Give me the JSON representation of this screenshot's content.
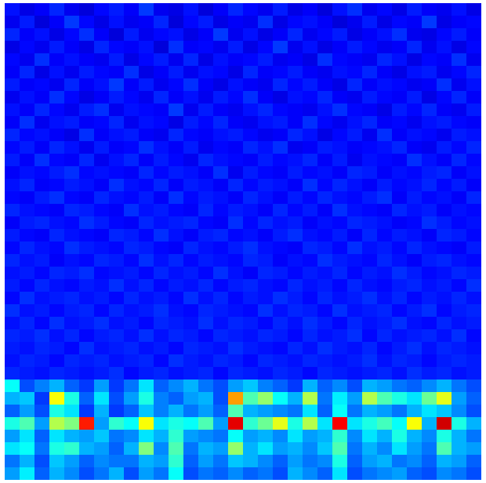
{
  "chart_data": {
    "type": "heatmap",
    "tick_labels": false,
    "clim": [
      0,
      100
    ],
    "z": [
      [
        14,
        10,
        12,
        16,
        11,
        9,
        13,
        15,
        12,
        18,
        11,
        10,
        14,
        9,
        12,
        16,
        13,
        11,
        15,
        10,
        12,
        9,
        14,
        17,
        11,
        13,
        10,
        15,
        12,
        11,
        14,
        10
      ],
      [
        11,
        15,
        9,
        12,
        18,
        13,
        10,
        14,
        11,
        12,
        16,
        9,
        13,
        15,
        10,
        12,
        11,
        17,
        10,
        13,
        14,
        12,
        9,
        11,
        15,
        10,
        13,
        12,
        18,
        10,
        12,
        13
      ],
      [
        16,
        12,
        14,
        10,
        13,
        17,
        12,
        9,
        15,
        11,
        13,
        14,
        10,
        12,
        18,
        11,
        14,
        10,
        12,
        16,
        11,
        13,
        15,
        10,
        12,
        14,
        17,
        11,
        10,
        13,
        15,
        12
      ],
      [
        10,
        13,
        11,
        15,
        12,
        10,
        16,
        13,
        12,
        14,
        9,
        17,
        12,
        13,
        11,
        15,
        10,
        13,
        18,
        11,
        14,
        10,
        12,
        15,
        13,
        11,
        12,
        16,
        11,
        14,
        10,
        13
      ],
      [
        13,
        11,
        17,
        12,
        14,
        12,
        11,
        15,
        10,
        13,
        15,
        11,
        16,
        10,
        14,
        12,
        13,
        15,
        11,
        12,
        10,
        17,
        13,
        12,
        11,
        16,
        14,
        10,
        13,
        12,
        17,
        11
      ],
      [
        12,
        16,
        10,
        14,
        11,
        15,
        13,
        12,
        17,
        10,
        12,
        15,
        11,
        14,
        13,
        10,
        16,
        12,
        13,
        15,
        12,
        11,
        14,
        13,
        16,
        12,
        10,
        14,
        15,
        11,
        13,
        16
      ],
      [
        15,
        12,
        13,
        11,
        16,
        12,
        14,
        18,
        12,
        15,
        11,
        13,
        17,
        12,
        10,
        14,
        12,
        11,
        16,
        13,
        15,
        12,
        10,
        16,
        12,
        14,
        13,
        11,
        12,
        17,
        11,
        14
      ],
      [
        11,
        14,
        12,
        17,
        13,
        10,
        12,
        15,
        13,
        11,
        16,
        12,
        14,
        11,
        15,
        13,
        17,
        12,
        10,
        14,
        13,
        16,
        12,
        11,
        15,
        13,
        12,
        15,
        10,
        13,
        16,
        12
      ],
      [
        14,
        12,
        16,
        13,
        11,
        15,
        17,
        11,
        14,
        13,
        12,
        18,
        11,
        15,
        12,
        11,
        14,
        16,
        13,
        12,
        11,
        14,
        17,
        13,
        12,
        10,
        15,
        13,
        16,
        12,
        11,
        15
      ],
      [
        12,
        17,
        11,
        14,
        15,
        12,
        13,
        16,
        11,
        14,
        13,
        10,
        15,
        13,
        16,
        12,
        11,
        14,
        15,
        12,
        17,
        13,
        11,
        14,
        16,
        12,
        13,
        11,
        14,
        15,
        13,
        12
      ],
      [
        16,
        13,
        14,
        12,
        10,
        17,
        12,
        14,
        15,
        12,
        11,
        16,
        13,
        12,
        14,
        15,
        13,
        11,
        12,
        16,
        14,
        10,
        13,
        15,
        11,
        17,
        12,
        14,
        13,
        11,
        15,
        14
      ],
      [
        13,
        15,
        12,
        16,
        14,
        11,
        15,
        12,
        13,
        17,
        14,
        12,
        15,
        11,
        13,
        12,
        16,
        14,
        17,
        11,
        12,
        15,
        14,
        12,
        13,
        14,
        16,
        12,
        11,
        15,
        13,
        16
      ],
      [
        15,
        12,
        17,
        13,
        12,
        16,
        11,
        14,
        16,
        12,
        15,
        13,
        11,
        16,
        14,
        13,
        12,
        15,
        13,
        14,
        16,
        12,
        15,
        11,
        14,
        13,
        12,
        17,
        14,
        12,
        16,
        13
      ],
      [
        12,
        14,
        13,
        15,
        17,
        13,
        14,
        13,
        12,
        16,
        13,
        15,
        14,
        12,
        17,
        11,
        15,
        13,
        12,
        15,
        13,
        14,
        12,
        16,
        15,
        12,
        14,
        13,
        15,
        16,
        12,
        14
      ],
      [
        14,
        16,
        12,
        13,
        15,
        14,
        12,
        17,
        14,
        13,
        16,
        12,
        15,
        14,
        12,
        16,
        13,
        15,
        14,
        12,
        17,
        13,
        16,
        14,
        12,
        15,
        13,
        14,
        16,
        13,
        15,
        12
      ],
      [
        13,
        12,
        15,
        17,
        13,
        12,
        16,
        14,
        13,
        15,
        12,
        17,
        13,
        15,
        14,
        12,
        16,
        14,
        12,
        15,
        13,
        16,
        14,
        13,
        15,
        17,
        12,
        15,
        13,
        14,
        12,
        16
      ],
      [
        16,
        14,
        13,
        12,
        16,
        15,
        13,
        12,
        17,
        14,
        15,
        13,
        12,
        16,
        13,
        15,
        14,
        12,
        16,
        13,
        15,
        12,
        17,
        14,
        13,
        12,
        16,
        14,
        15,
        12,
        14,
        13
      ],
      [
        12,
        15,
        16,
        14,
        13,
        17,
        15,
        13,
        12,
        16,
        14,
        15,
        16,
        13,
        12,
        17,
        13,
        16,
        14,
        15,
        12,
        14,
        13,
        16,
        15,
        14,
        12,
        13,
        17,
        15,
        13,
        14
      ],
      [
        15,
        13,
        12,
        16,
        14,
        13,
        12,
        16,
        15,
        13,
        17,
        14,
        12,
        15,
        16,
        13,
        14,
        12,
        15,
        17,
        14,
        13,
        15,
        12,
        16,
        13,
        15,
        14,
        12,
        16,
        15,
        13
      ],
      [
        13,
        16,
        14,
        13,
        17,
        15,
        14,
        13,
        16,
        15,
        13,
        12,
        16,
        14,
        13,
        15,
        17,
        14,
        13,
        12,
        16,
        15,
        13,
        17,
        14,
        15,
        13,
        16,
        14,
        13,
        12,
        15
      ],
      [
        16,
        14,
        15,
        12,
        14,
        13,
        16,
        15,
        13,
        17,
        14,
        16,
        13,
        15,
        14,
        13,
        16,
        15,
        12,
        14,
        13,
        17,
        15,
        14,
        13,
        16,
        14,
        12,
        15,
        16,
        14,
        13
      ],
      [
        14,
        15,
        13,
        16,
        15,
        17,
        13,
        14,
        15,
        13,
        16,
        14,
        15,
        13,
        17,
        14,
        12,
        16,
        15,
        13,
        15,
        14,
        16,
        13,
        15,
        14,
        17,
        15,
        13,
        14,
        16,
        15
      ],
      [
        15,
        13,
        16,
        14,
        13,
        15,
        14,
        17,
        14,
        16,
        13,
        15,
        14,
        16,
        13,
        15,
        16,
        14,
        13,
        16,
        14,
        15,
        13,
        16,
        14,
        13,
        15,
        16,
        14,
        15,
        13,
        17
      ],
      [
        13,
        17,
        14,
        15,
        16,
        14,
        15,
        13,
        16,
        14,
        15,
        13,
        17,
        14,
        16,
        13,
        15,
        14,
        17,
        15,
        13,
        16,
        14,
        15,
        17,
        14,
        16,
        13,
        15,
        14,
        16,
        14
      ],
      [
        17,
        14,
        15,
        13,
        15,
        16,
        13,
        16,
        14,
        15,
        17,
        14,
        13,
        16,
        15,
        14,
        13,
        17,
        14,
        16,
        15,
        13,
        17,
        14,
        15,
        16,
        13,
        15,
        17,
        13,
        15,
        16
      ],
      [
        14,
        16,
        13,
        17,
        14,
        15,
        17,
        14,
        15,
        13,
        16,
        15,
        14,
        17,
        14,
        16,
        15,
        13,
        16,
        14,
        17,
        15,
        13,
        16,
        14,
        15,
        17,
        14,
        13,
        16,
        14,
        15
      ],
      [
        16,
        15,
        17,
        14,
        16,
        13,
        15,
        16,
        14,
        17,
        14,
        16,
        15,
        13,
        16,
        15,
        14,
        16,
        15,
        13,
        16,
        14,
        15,
        17,
        13,
        16,
        14,
        15,
        16,
        14,
        17,
        13
      ],
      [
        15,
        14,
        16,
        15,
        13,
        17,
        14,
        15,
        16,
        14,
        15,
        13,
        16,
        15,
        14,
        17,
        15,
        14,
        13,
        16,
        14,
        17,
        15,
        14,
        16,
        13,
        15,
        17,
        14,
        16,
        15,
        14
      ],
      [
        14,
        16,
        15,
        13,
        16,
        15,
        16,
        14,
        15,
        16,
        13,
        17,
        15,
        14,
        16,
        15,
        13,
        16,
        15,
        14,
        16,
        15,
        14,
        15,
        17,
        14,
        16,
        15,
        13,
        15,
        16,
        15
      ],
      [
        16,
        15,
        14,
        16,
        15,
        14,
        15,
        17,
        13,
        15,
        16,
        14,
        15,
        16,
        13,
        16,
        15,
        14,
        16,
        15,
        13,
        16,
        15,
        14,
        15,
        16,
        14,
        17,
        15,
        16,
        14,
        15
      ],
      [
        38,
        20,
        25,
        30,
        22,
        18,
        28,
        18,
        24,
        35,
        22,
        26,
        30,
        24,
        20,
        28,
        32,
        25,
        22,
        18,
        30,
        22,
        26,
        20,
        30,
        28,
        24,
        22,
        26,
        30,
        24,
        20
      ],
      [
        30,
        32,
        18,
        62,
        40,
        22,
        35,
        20,
        28,
        40,
        25,
        22,
        28,
        30,
        20,
        72,
        45,
        52,
        38,
        30,
        55,
        24,
        36,
        28,
        55,
        45,
        40,
        35,
        48,
        60,
        28,
        22
      ],
      [
        22,
        28,
        20,
        40,
        35,
        18,
        30,
        18,
        22,
        32,
        25,
        30,
        24,
        28,
        22,
        45,
        30,
        28,
        26,
        24,
        35,
        22,
        38,
        24,
        30,
        28,
        24,
        30,
        35,
        32,
        26,
        20
      ],
      [
        40,
        45,
        28,
        55,
        50,
        85,
        28,
        42,
        38,
        62,
        35,
        40,
        38,
        45,
        28,
        90,
        42,
        48,
        60,
        40,
        55,
        35,
        88,
        35,
        40,
        44,
        38,
        62,
        30,
        92,
        40,
        30
      ],
      [
        28,
        35,
        22,
        35,
        30,
        28,
        32,
        24,
        26,
        35,
        30,
        42,
        28,
        26,
        24,
        38,
        28,
        30,
        26,
        35,
        28,
        30,
        42,
        26,
        35,
        30,
        40,
        30,
        26,
        40,
        30,
        24
      ],
      [
        35,
        38,
        24,
        40,
        42,
        30,
        28,
        22,
        30,
        50,
        26,
        45,
        24,
        30,
        28,
        52,
        30,
        35,
        28,
        30,
        26,
        32,
        45,
        24,
        30,
        26,
        35,
        28,
        24,
        45,
        30,
        28
      ],
      [
        24,
        30,
        20,
        32,
        28,
        22,
        26,
        24,
        24,
        30,
        28,
        42,
        22,
        28,
        24,
        32,
        30,
        26,
        22,
        28,
        24,
        26,
        40,
        22,
        28,
        30,
        24,
        26,
        22,
        30,
        28,
        22
      ],
      [
        28,
        36,
        22,
        30,
        26,
        20,
        24,
        30,
        20,
        28,
        24,
        38,
        20,
        24,
        22,
        26,
        22,
        24,
        20,
        30,
        26,
        22,
        35,
        20,
        24,
        26,
        28,
        22,
        20,
        26,
        24,
        20
      ]
    ]
  }
}
